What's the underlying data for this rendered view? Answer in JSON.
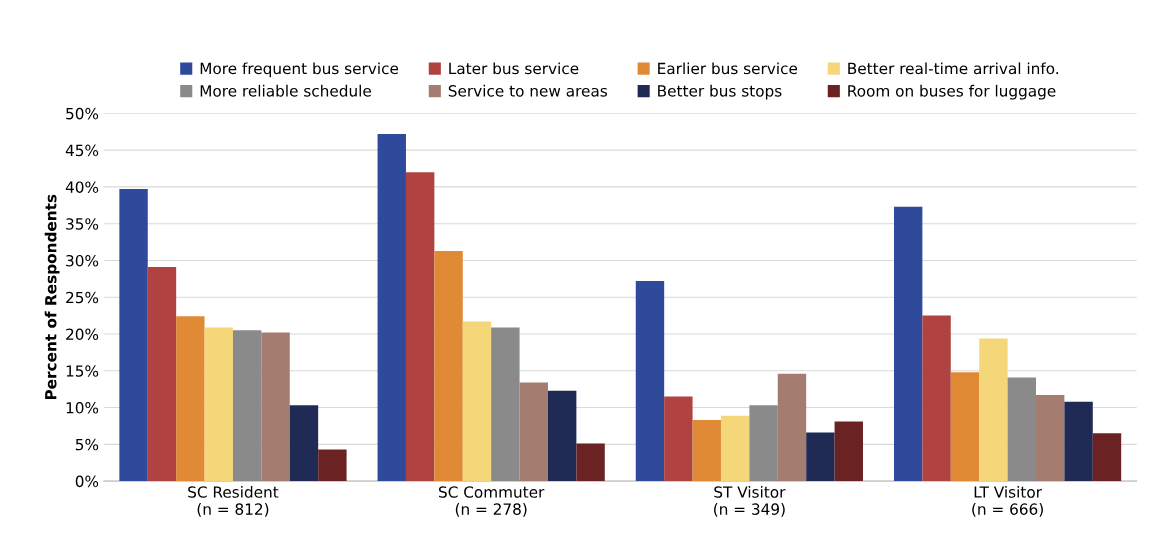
{
  "chart_data": {
    "type": "bar",
    "ylabel": "Percent of Respondents",
    "categories": [
      "SC Resident\n(n = 812)",
      "SC Commuter\n(n = 278)",
      "ST Visitor\n(n = 349)",
      "LT Visitor\n(n = 666)"
    ],
    "series": [
      {
        "name": "More frequent bus service",
        "color": "#2f4a9a",
        "values": [
          39.7,
          47.2,
          27.2,
          37.3
        ]
      },
      {
        "name": "Later bus service",
        "color": "#b04242",
        "values": [
          29.1,
          42.0,
          11.5,
          22.5
        ]
      },
      {
        "name": "Earlier bus service",
        "color": "#e08a36",
        "values": [
          22.4,
          31.3,
          8.3,
          14.8
        ]
      },
      {
        "name": "Better real-time arrival info.",
        "color": "#f5d77a",
        "values": [
          20.9,
          21.7,
          8.9,
          19.4
        ]
      },
      {
        "name": "More reliable schedule",
        "color": "#8a8a8a",
        "values": [
          20.5,
          20.9,
          10.3,
          14.1
        ]
      },
      {
        "name": "Service to new areas",
        "color": "#a57c70",
        "values": [
          20.2,
          13.4,
          14.6,
          11.7
        ]
      },
      {
        "name": "Better bus stops",
        "color": "#1f2b55",
        "values": [
          10.3,
          12.3,
          6.6,
          10.8
        ]
      },
      {
        "name": "Room on buses for luggage",
        "color": "#6a2222",
        "values": [
          4.3,
          5.1,
          8.1,
          6.5
        ]
      }
    ],
    "ylim": [
      0,
      50
    ],
    "yticks": [
      {
        "value": 0,
        "label": "0%"
      },
      {
        "value": 5,
        "label": "5%"
      },
      {
        "value": 10,
        "label": "10%"
      },
      {
        "value": 15,
        "label": "15%"
      },
      {
        "value": 20,
        "label": "20%"
      },
      {
        "value": 25,
        "label": "25%"
      },
      {
        "value": 30,
        "label": "30%"
      },
      {
        "value": 35,
        "label": "35%"
      },
      {
        "value": 40,
        "label": "40%"
      },
      {
        "value": 45,
        "label": "45%"
      },
      {
        "value": 50,
        "label": "50%"
      }
    ],
    "grid": "y",
    "legend": "top"
  }
}
